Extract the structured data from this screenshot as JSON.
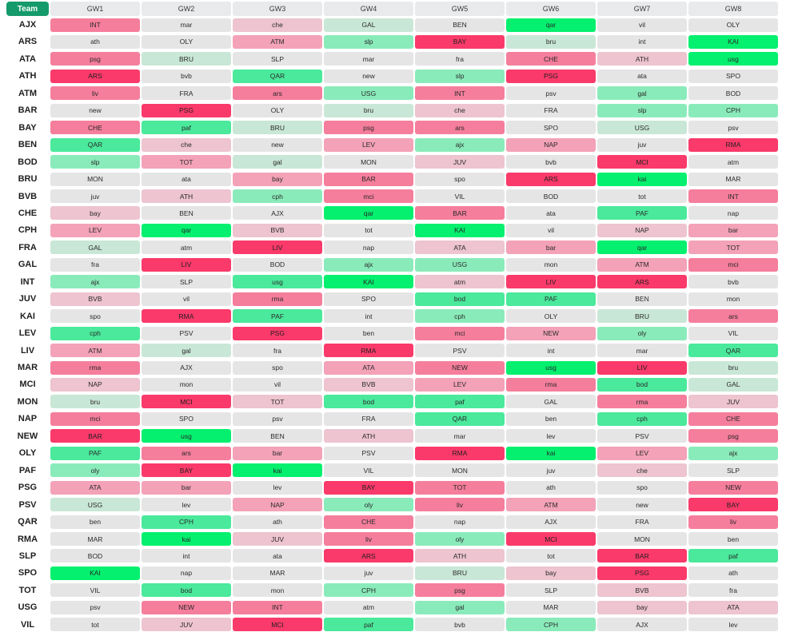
{
  "header": {
    "team_label": "Team",
    "gameweeks": [
      "GW1",
      "GW2",
      "GW3",
      "GW4",
      "GW5",
      "GW6",
      "GW7",
      "GW8"
    ]
  },
  "difficulty_colors": {
    "1": "#04f06e",
    "2": "#4ae99b",
    "3": "#8aebba",
    "4": "#c9e7d6",
    "5": "#e5e5e5",
    "6": "#edc4cf",
    "7": "#f3a2b8",
    "8": "#f57e9c",
    "9": "#fa3a6a"
  },
  "rows": [
    {
      "team": "AJX",
      "fixtures": [
        [
          "INT",
          8
        ],
        [
          "mar",
          5
        ],
        [
          "che",
          6
        ],
        [
          "GAL",
          4
        ],
        [
          "BEN",
          5
        ],
        [
          "qar",
          1
        ],
        [
          "vil",
          5
        ],
        [
          "OLY",
          5
        ]
      ]
    },
    {
      "team": "ARS",
      "fixtures": [
        [
          "ath",
          5
        ],
        [
          "OLY",
          5
        ],
        [
          "ATM",
          7
        ],
        [
          "slp",
          3
        ],
        [
          "BAY",
          9
        ],
        [
          "bru",
          4
        ],
        [
          "int",
          5
        ],
        [
          "KAI",
          1
        ]
      ]
    },
    {
      "team": "ATA",
      "fixtures": [
        [
          "psg",
          8
        ],
        [
          "BRU",
          4
        ],
        [
          "SLP",
          5
        ],
        [
          "mar",
          5
        ],
        [
          "fra",
          5
        ],
        [
          "CHE",
          8
        ],
        [
          "ATH",
          6
        ],
        [
          "usg",
          1
        ]
      ]
    },
    {
      "team": "ATH",
      "fixtures": [
        [
          "ARS",
          9
        ],
        [
          "bvb",
          5
        ],
        [
          "QAR",
          2
        ],
        [
          "new",
          5
        ],
        [
          "slp",
          3
        ],
        [
          "PSG",
          9
        ],
        [
          "ata",
          5
        ],
        [
          "SPO",
          5
        ]
      ]
    },
    {
      "team": "ATM",
      "fixtures": [
        [
          "liv",
          8
        ],
        [
          "FRA",
          5
        ],
        [
          "ars",
          8
        ],
        [
          "USG",
          3
        ],
        [
          "INT",
          8
        ],
        [
          "psv",
          5
        ],
        [
          "gal",
          3
        ],
        [
          "BOD",
          5
        ]
      ]
    },
    {
      "team": "BAR",
      "fixtures": [
        [
          "new",
          5
        ],
        [
          "PSG",
          9
        ],
        [
          "OLY",
          5
        ],
        [
          "bru",
          4
        ],
        [
          "che",
          6
        ],
        [
          "FRA",
          5
        ],
        [
          "slp",
          3
        ],
        [
          "CPH",
          3
        ]
      ]
    },
    {
      "team": "BAY",
      "fixtures": [
        [
          "CHE",
          8
        ],
        [
          "paf",
          2
        ],
        [
          "BRU",
          4
        ],
        [
          "psg",
          8
        ],
        [
          "ars",
          8
        ],
        [
          "SPO",
          5
        ],
        [
          "USG",
          4
        ],
        [
          "psv",
          5
        ]
      ]
    },
    {
      "team": "BEN",
      "fixtures": [
        [
          "QAR",
          2
        ],
        [
          "che",
          6
        ],
        [
          "new",
          5
        ],
        [
          "LEV",
          7
        ],
        [
          "ajx",
          3
        ],
        [
          "NAP",
          7
        ],
        [
          "juv",
          5
        ],
        [
          "RMA",
          9
        ]
      ]
    },
    {
      "team": "BOD",
      "fixtures": [
        [
          "slp",
          3
        ],
        [
          "TOT",
          7
        ],
        [
          "gal",
          4
        ],
        [
          "MON",
          5
        ],
        [
          "JUV",
          6
        ],
        [
          "bvb",
          5
        ],
        [
          "MCI",
          9
        ],
        [
          "atm",
          5
        ]
      ]
    },
    {
      "team": "BRU",
      "fixtures": [
        [
          "MON",
          5
        ],
        [
          "ata",
          5
        ],
        [
          "bay",
          7
        ],
        [
          "BAR",
          8
        ],
        [
          "spo",
          5
        ],
        [
          "ARS",
          9
        ],
        [
          "kai",
          1
        ],
        [
          "MAR",
          5
        ]
      ]
    },
    {
      "team": "BVB",
      "fixtures": [
        [
          "juv",
          5
        ],
        [
          "ATH",
          6
        ],
        [
          "cph",
          3
        ],
        [
          "mci",
          8
        ],
        [
          "VIL",
          5
        ],
        [
          "BOD",
          5
        ],
        [
          "tot",
          5
        ],
        [
          "INT",
          8
        ]
      ]
    },
    {
      "team": "CHE",
      "fixtures": [
        [
          "bay",
          6
        ],
        [
          "BEN",
          5
        ],
        [
          "AJX",
          5
        ],
        [
          "qar",
          1
        ],
        [
          "BAR",
          8
        ],
        [
          "ata",
          5
        ],
        [
          "PAF",
          2
        ],
        [
          "nap",
          5
        ]
      ]
    },
    {
      "team": "CPH",
      "fixtures": [
        [
          "LEV",
          7
        ],
        [
          "qar",
          1
        ],
        [
          "BVB",
          6
        ],
        [
          "tot",
          5
        ],
        [
          "KAI",
          1
        ],
        [
          "vil",
          5
        ],
        [
          "NAP",
          6
        ],
        [
          "bar",
          7
        ]
      ]
    },
    {
      "team": "FRA",
      "fixtures": [
        [
          "GAL",
          4
        ],
        [
          "atm",
          5
        ],
        [
          "LIV",
          9
        ],
        [
          "nap",
          5
        ],
        [
          "ATA",
          6
        ],
        [
          "bar",
          7
        ],
        [
          "qar",
          1
        ],
        [
          "TOT",
          7
        ]
      ]
    },
    {
      "team": "GAL",
      "fixtures": [
        [
          "fra",
          5
        ],
        [
          "LIV",
          9
        ],
        [
          "BOD",
          5
        ],
        [
          "ajx",
          3
        ],
        [
          "USG",
          3
        ],
        [
          "mon",
          5
        ],
        [
          "ATM",
          7
        ],
        [
          "mci",
          8
        ]
      ]
    },
    {
      "team": "INT",
      "fixtures": [
        [
          "ajx",
          3
        ],
        [
          "SLP",
          5
        ],
        [
          "usg",
          2
        ],
        [
          "KAI",
          1
        ],
        [
          "atm",
          6
        ],
        [
          "LIV",
          9
        ],
        [
          "ARS",
          9
        ],
        [
          "bvb",
          5
        ]
      ]
    },
    {
      "team": "JUV",
      "fixtures": [
        [
          "BVB",
          6
        ],
        [
          "vil",
          5
        ],
        [
          "rma",
          8
        ],
        [
          "SPO",
          5
        ],
        [
          "bod",
          2
        ],
        [
          "PAF",
          2
        ],
        [
          "BEN",
          5
        ],
        [
          "mon",
          5
        ]
      ]
    },
    {
      "team": "KAI",
      "fixtures": [
        [
          "spo",
          5
        ],
        [
          "RMA",
          9
        ],
        [
          "PAF",
          2
        ],
        [
          "int",
          5
        ],
        [
          "cph",
          3
        ],
        [
          "OLY",
          5
        ],
        [
          "BRU",
          4
        ],
        [
          "ars",
          8
        ]
      ]
    },
    {
      "team": "LEV",
      "fixtures": [
        [
          "cph",
          2
        ],
        [
          "PSV",
          5
        ],
        [
          "PSG",
          9
        ],
        [
          "ben",
          5
        ],
        [
          "mci",
          8
        ],
        [
          "NEW",
          7
        ],
        [
          "oly",
          3
        ],
        [
          "VIL",
          5
        ]
      ]
    },
    {
      "team": "LIV",
      "fixtures": [
        [
          "ATM",
          7
        ],
        [
          "gal",
          4
        ],
        [
          "fra",
          5
        ],
        [
          "RMA",
          9
        ],
        [
          "PSV",
          5
        ],
        [
          "int",
          5
        ],
        [
          "mar",
          5
        ],
        [
          "QAR",
          2
        ]
      ]
    },
    {
      "team": "MAR",
      "fixtures": [
        [
          "rma",
          8
        ],
        [
          "AJX",
          5
        ],
        [
          "spo",
          5
        ],
        [
          "ATA",
          7
        ],
        [
          "NEW",
          8
        ],
        [
          "usg",
          1
        ],
        [
          "LIV",
          9
        ],
        [
          "bru",
          4
        ]
      ]
    },
    {
      "team": "MCI",
      "fixtures": [
        [
          "NAP",
          6
        ],
        [
          "mon",
          5
        ],
        [
          "vil",
          5
        ],
        [
          "BVB",
          6
        ],
        [
          "LEV",
          7
        ],
        [
          "rma",
          8
        ],
        [
          "bod",
          2
        ],
        [
          "GAL",
          4
        ]
      ]
    },
    {
      "team": "MON",
      "fixtures": [
        [
          "bru",
          4
        ],
        [
          "MCI",
          9
        ],
        [
          "TOT",
          6
        ],
        [
          "bod",
          2
        ],
        [
          "paf",
          2
        ],
        [
          "GAL",
          5
        ],
        [
          "rma",
          8
        ],
        [
          "JUV",
          6
        ]
      ]
    },
    {
      "team": "NAP",
      "fixtures": [
        [
          "mci",
          8
        ],
        [
          "SPO",
          5
        ],
        [
          "psv",
          5
        ],
        [
          "FRA",
          5
        ],
        [
          "QAR",
          2
        ],
        [
          "ben",
          5
        ],
        [
          "cph",
          2
        ],
        [
          "CHE",
          8
        ]
      ]
    },
    {
      "team": "NEW",
      "fixtures": [
        [
          "BAR",
          9
        ],
        [
          "usg",
          1
        ],
        [
          "BEN",
          5
        ],
        [
          "ATH",
          6
        ],
        [
          "mar",
          5
        ],
        [
          "lev",
          5
        ],
        [
          "PSV",
          5
        ],
        [
          "psg",
          8
        ]
      ]
    },
    {
      "team": "OLY",
      "fixtures": [
        [
          "PAF",
          2
        ],
        [
          "ars",
          8
        ],
        [
          "bar",
          7
        ],
        [
          "PSV",
          5
        ],
        [
          "RMA",
          9
        ],
        [
          "kai",
          1
        ],
        [
          "LEV",
          7
        ],
        [
          "ajx",
          3
        ]
      ]
    },
    {
      "team": "PAF",
      "fixtures": [
        [
          "oly",
          3
        ],
        [
          "BAY",
          9
        ],
        [
          "kai",
          1
        ],
        [
          "VIL",
          5
        ],
        [
          "MON",
          5
        ],
        [
          "juv",
          5
        ],
        [
          "che",
          6
        ],
        [
          "SLP",
          5
        ]
      ]
    },
    {
      "team": "PSG",
      "fixtures": [
        [
          "ATA",
          7
        ],
        [
          "bar",
          7
        ],
        [
          "lev",
          5
        ],
        [
          "BAY",
          9
        ],
        [
          "TOT",
          8
        ],
        [
          "ath",
          5
        ],
        [
          "spo",
          5
        ],
        [
          "NEW",
          8
        ]
      ]
    },
    {
      "team": "PSV",
      "fixtures": [
        [
          "USG",
          4
        ],
        [
          "lev",
          5
        ],
        [
          "NAP",
          7
        ],
        [
          "oly",
          3
        ],
        [
          "liv",
          8
        ],
        [
          "ATM",
          7
        ],
        [
          "new",
          5
        ],
        [
          "BAY",
          9
        ]
      ]
    },
    {
      "team": "QAR",
      "fixtures": [
        [
          "ben",
          5
        ],
        [
          "CPH",
          2
        ],
        [
          "ath",
          5
        ],
        [
          "CHE",
          8
        ],
        [
          "nap",
          5
        ],
        [
          "AJX",
          5
        ],
        [
          "FRA",
          5
        ],
        [
          "liv",
          8
        ]
      ]
    },
    {
      "team": "RMA",
      "fixtures": [
        [
          "MAR",
          5
        ],
        [
          "kai",
          1
        ],
        [
          "JUV",
          6
        ],
        [
          "liv",
          8
        ],
        [
          "oly",
          3
        ],
        [
          "MCI",
          9
        ],
        [
          "MON",
          5
        ],
        [
          "ben",
          5
        ]
      ]
    },
    {
      "team": "SLP",
      "fixtures": [
        [
          "BOD",
          5
        ],
        [
          "int",
          5
        ],
        [
          "ata",
          5
        ],
        [
          "ARS",
          9
        ],
        [
          "ATH",
          6
        ],
        [
          "tot",
          5
        ],
        [
          "BAR",
          9
        ],
        [
          "paf",
          2
        ]
      ]
    },
    {
      "team": "SPO",
      "fixtures": [
        [
          "KAI",
          1
        ],
        [
          "nap",
          5
        ],
        [
          "MAR",
          5
        ],
        [
          "juv",
          5
        ],
        [
          "BRU",
          4
        ],
        [
          "bay",
          6
        ],
        [
          "PSG",
          9
        ],
        [
          "ath",
          5
        ]
      ]
    },
    {
      "team": "TOT",
      "fixtures": [
        [
          "VIL",
          5
        ],
        [
          "bod",
          2
        ],
        [
          "mon",
          5
        ],
        [
          "CPH",
          3
        ],
        [
          "psg",
          8
        ],
        [
          "SLP",
          5
        ],
        [
          "BVB",
          6
        ],
        [
          "fra",
          5
        ]
      ]
    },
    {
      "team": "USG",
      "fixtures": [
        [
          "psv",
          5
        ],
        [
          "NEW",
          8
        ],
        [
          "INT",
          8
        ],
        [
          "atm",
          5
        ],
        [
          "gal",
          3
        ],
        [
          "MAR",
          5
        ],
        [
          "bay",
          6
        ],
        [
          "ATA",
          6
        ]
      ]
    },
    {
      "team": "VIL",
      "fixtures": [
        [
          "tot",
          5
        ],
        [
          "JUV",
          6
        ],
        [
          "MCI",
          9
        ],
        [
          "paf",
          2
        ],
        [
          "bvb",
          5
        ],
        [
          "CPH",
          3
        ],
        [
          "AJX",
          5
        ],
        [
          "lev",
          5
        ]
      ]
    }
  ]
}
